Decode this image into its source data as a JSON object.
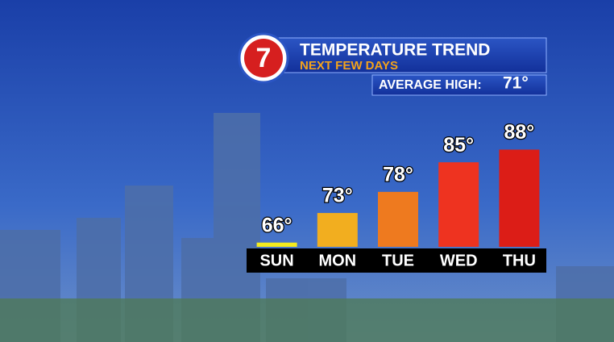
{
  "chart_data": {
    "type": "bar",
    "title": "TEMPERATURE TREND",
    "subtitle": "NEXT FEW DAYS",
    "logo": "7",
    "average_high_label": "AVERAGE HIGH:",
    "average_high": "71°",
    "categories": [
      "SUN",
      "MON",
      "TUE",
      "WED",
      "THU"
    ],
    "values": [
      66,
      73,
      78,
      85,
      88
    ],
    "value_labels": [
      "66°",
      "73°",
      "78°",
      "85°",
      "88°"
    ],
    "colors": [
      "#f4ec1e",
      "#f2ae1f",
      "#ee7a1f",
      "#ee3320",
      "#dc1d17"
    ],
    "ylim": [
      65,
      90
    ]
  }
}
